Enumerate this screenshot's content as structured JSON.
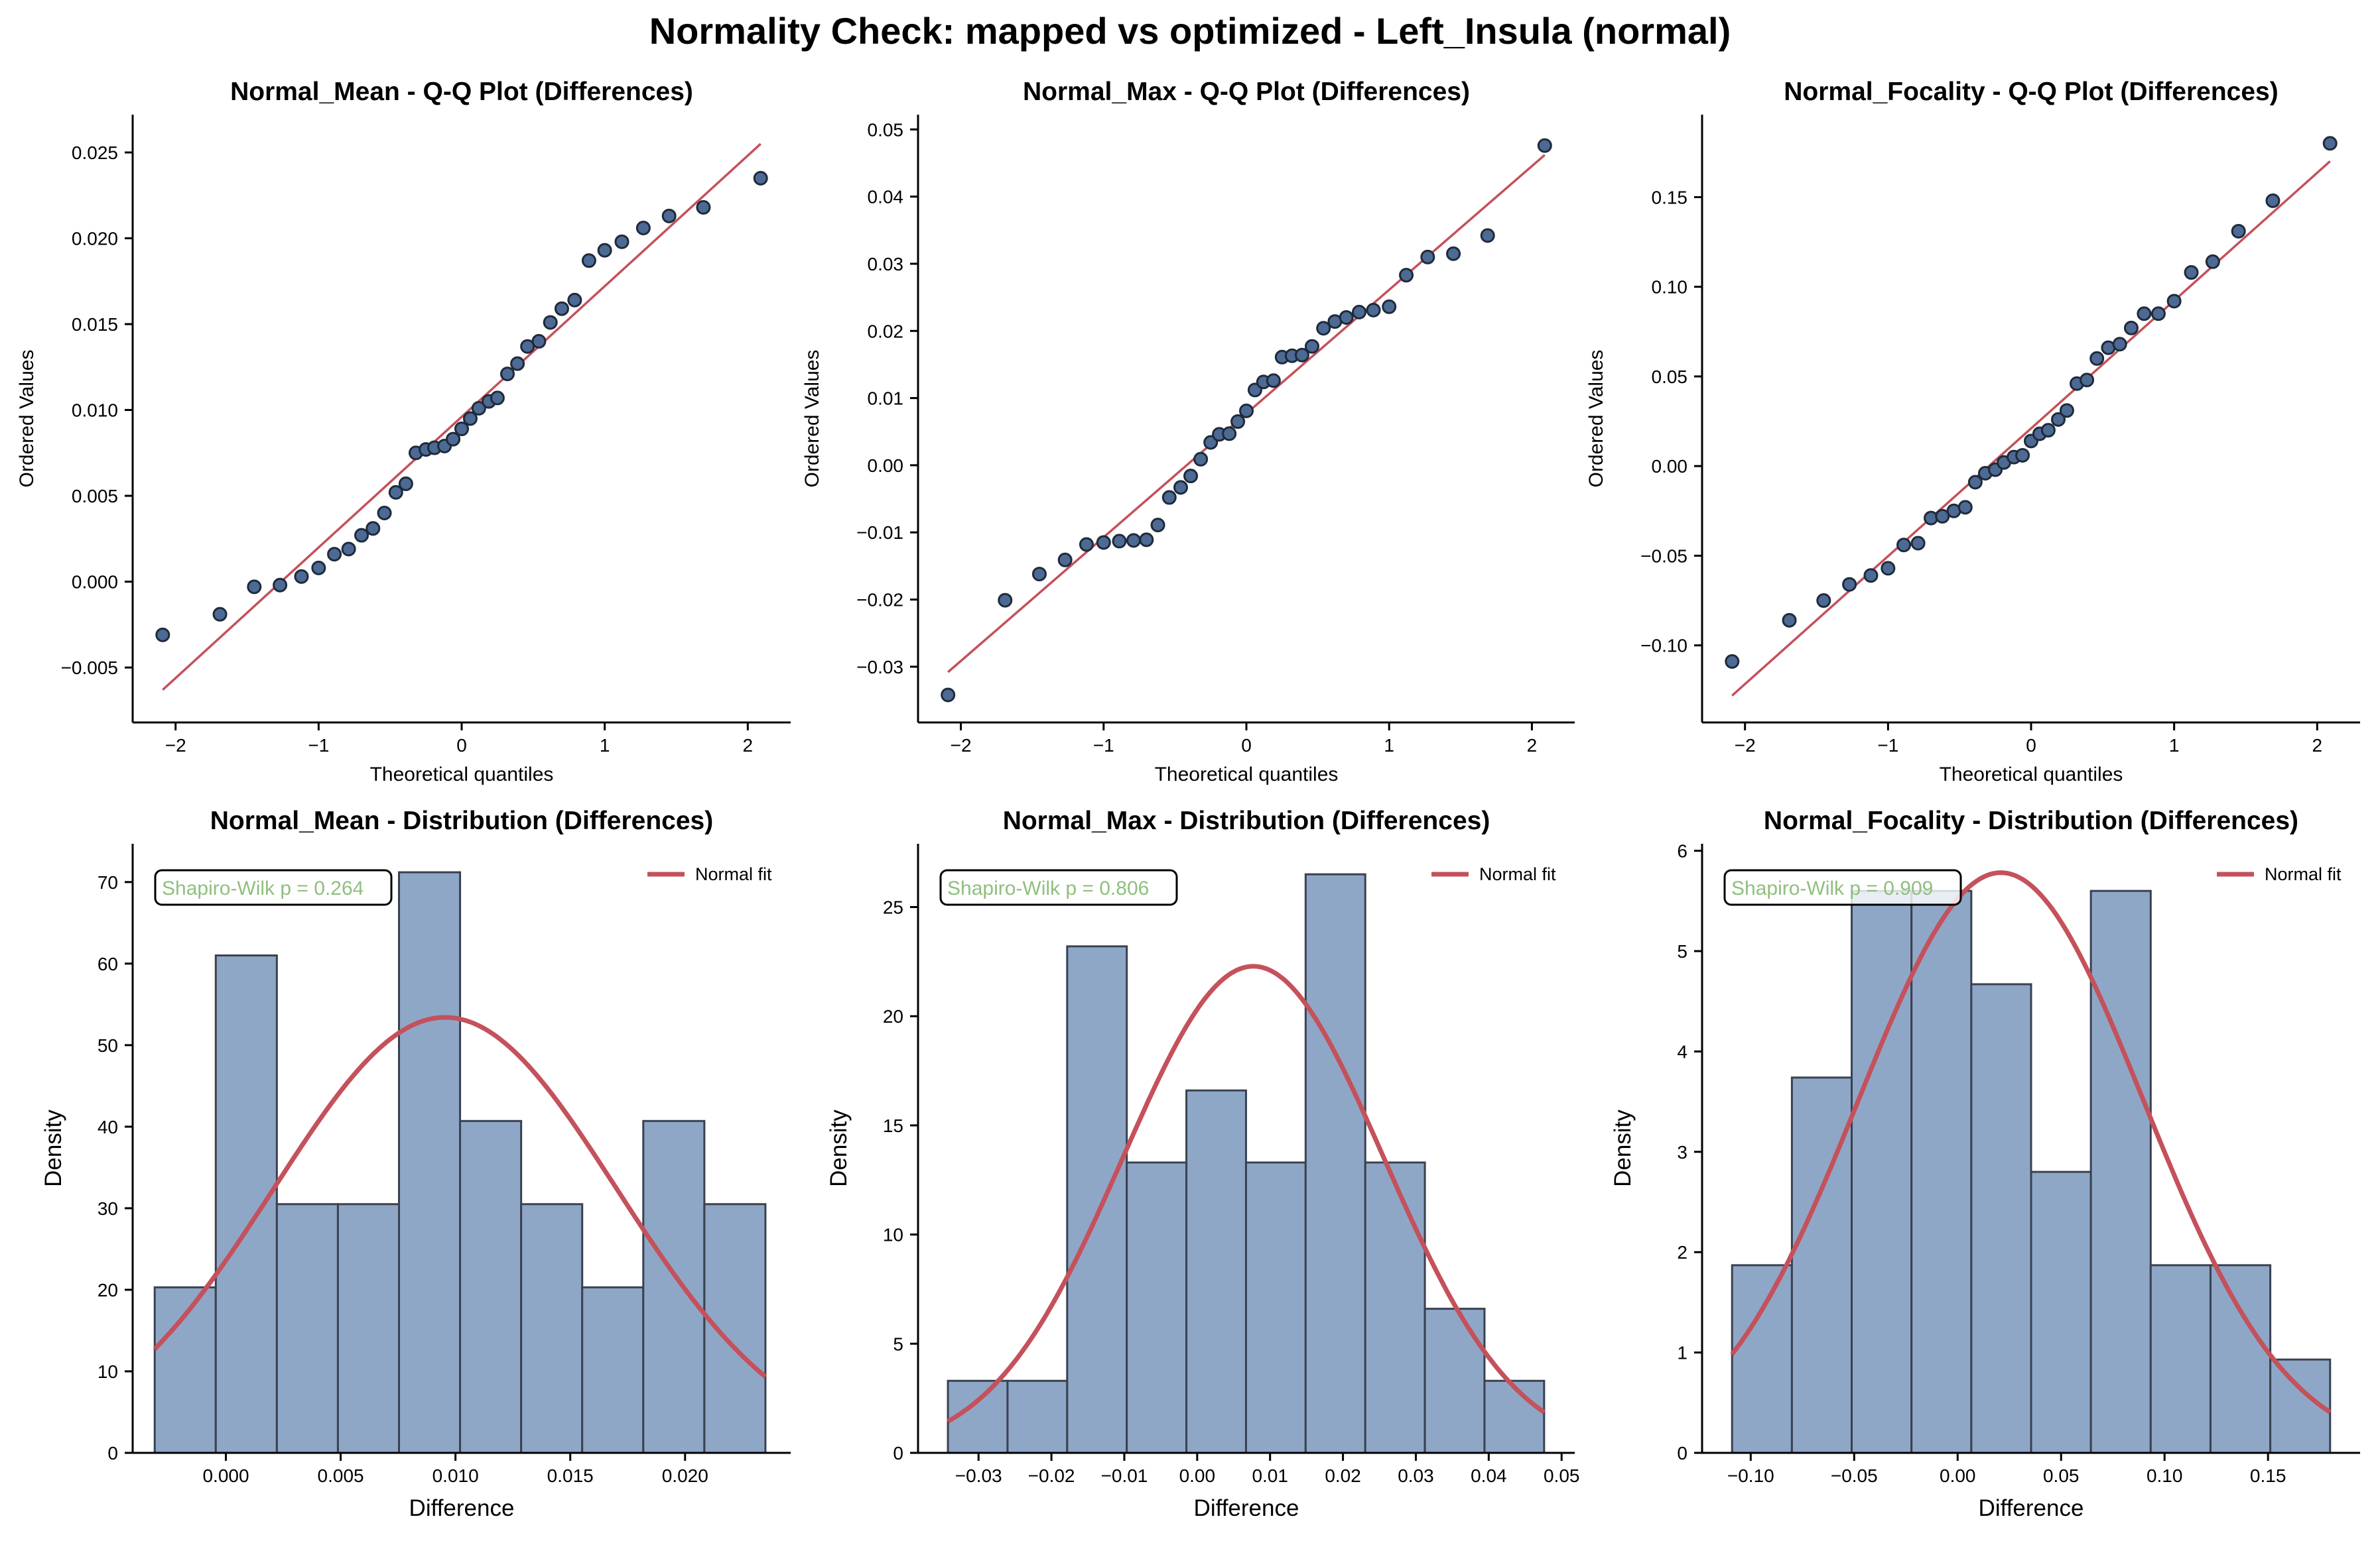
{
  "figure": {
    "title": "Normality Check: mapped vs optimized - Left_Insula (normal)"
  },
  "colors": {
    "point_fill": "#4c6a94",
    "point_edge": "#1f2a3a",
    "fit_line": "#c4515b",
    "hist_fill": "#8fa7c7",
    "hist_edge": "#3a4150",
    "annotation_text": "#8fbf7f"
  },
  "chart_data": [
    {
      "type": "scatter",
      "title": "Normal_Mean - Q-Q Plot (Differences)",
      "xlabel": "Theoretical quantiles",
      "ylabel": "Ordered Values",
      "xlim": [
        -2.3,
        2.3
      ],
      "ylim": [
        -0.0082,
        0.0272
      ],
      "xticks": [
        -2,
        -1,
        0,
        1,
        2
      ],
      "xtick_labels": [
        "−2",
        "−1",
        "0",
        "1",
        "2"
      ],
      "yticks": [
        -0.005,
        0.0,
        0.005,
        0.01,
        0.015,
        0.02,
        0.025
      ],
      "ytick_labels": [
        "−0.005",
        "0.000",
        "0.005",
        "0.010",
        "0.015",
        "0.020",
        "0.025"
      ],
      "x": [
        -2.09,
        -1.69,
        -1.45,
        -1.27,
        -1.12,
        -1.0,
        -0.89,
        -0.79,
        -0.7,
        -0.62,
        -0.54,
        -0.46,
        -0.39,
        -0.32,
        -0.25,
        -0.19,
        -0.12,
        -0.06,
        0.0,
        0.06,
        0.12,
        0.19,
        0.25,
        0.32,
        0.39,
        0.46,
        0.54,
        0.62,
        0.7,
        0.79,
        0.89,
        1.0,
        1.12,
        1.27,
        1.45,
        1.69,
        2.09
      ],
      "y": [
        -0.0031,
        -0.0019,
        -0.0003,
        -0.0002,
        0.0003,
        0.0008,
        0.0016,
        0.0019,
        0.0027,
        0.0031,
        0.004,
        0.0052,
        0.0057,
        0.0075,
        0.0077,
        0.0078,
        0.0079,
        0.0083,
        0.0089,
        0.0095,
        0.0101,
        0.0105,
        0.0107,
        0.0121,
        0.0127,
        0.0137,
        0.014,
        0.0151,
        0.0159,
        0.0164,
        0.0187,
        0.0193,
        0.0198,
        0.0206,
        0.0213,
        0.0218,
        0.0235
      ],
      "fit_line": {
        "x": [
          -2.09,
          2.09
        ],
        "y": [
          -0.0063,
          0.0255
        ]
      }
    },
    {
      "type": "scatter",
      "title": "Normal_Max - Q-Q Plot (Differences)",
      "xlabel": "Theoretical quantiles",
      "ylabel": "Ordered Values",
      "xlim": [
        -2.3,
        2.3
      ],
      "ylim": [
        -0.0383,
        0.0522
      ],
      "xticks": [
        -2,
        -1,
        0,
        1,
        2
      ],
      "xtick_labels": [
        "−2",
        "−1",
        "0",
        "1",
        "2"
      ],
      "yticks": [
        -0.03,
        -0.02,
        -0.01,
        0.0,
        0.01,
        0.02,
        0.03,
        0.04,
        0.05
      ],
      "ytick_labels": [
        "−0.03",
        "−0.02",
        "−0.01",
        "0.00",
        "0.01",
        "0.02",
        "0.03",
        "0.04",
        "0.05"
      ],
      "x": [
        -2.09,
        -1.69,
        -1.45,
        -1.27,
        -1.12,
        -1.0,
        -0.89,
        -0.79,
        -0.7,
        -0.62,
        -0.54,
        -0.46,
        -0.39,
        -0.32,
        -0.25,
        -0.19,
        -0.12,
        -0.06,
        0.0,
        0.06,
        0.12,
        0.19,
        0.25,
        0.32,
        0.39,
        0.46,
        0.54,
        0.62,
        0.7,
        0.79,
        0.89,
        1.0,
        1.12,
        1.27,
        1.45,
        1.69,
        2.09
      ],
      "y": [
        -0.0342,
        -0.0201,
        -0.0162,
        -0.0141,
        -0.0118,
        -0.0115,
        -0.0113,
        -0.0112,
        -0.0111,
        -0.0089,
        -0.0048,
        -0.0033,
        -0.0016,
        0.0009,
        0.0034,
        0.0046,
        0.0047,
        0.0065,
        0.0081,
        0.0112,
        0.0124,
        0.0126,
        0.0161,
        0.0163,
        0.0164,
        0.0177,
        0.0204,
        0.0214,
        0.022,
        0.0228,
        0.0231,
        0.0236,
        0.0283,
        0.031,
        0.0315,
        0.0342,
        0.0476
      ],
      "fit_line": {
        "x": [
          -2.09,
          2.09
        ],
        "y": [
          -0.0308,
          0.0462
        ]
      }
    },
    {
      "type": "scatter",
      "title": "Normal_Focality - Q-Q Plot (Differences)",
      "xlabel": "Theoretical quantiles",
      "ylabel": "Ordered Values",
      "xlim": [
        -2.3,
        2.3
      ],
      "ylim": [
        -0.143,
        0.196
      ],
      "xticks": [
        -2,
        -1,
        0,
        1,
        2
      ],
      "xtick_labels": [
        "−2",
        "−1",
        "0",
        "1",
        "2"
      ],
      "yticks": [
        -0.1,
        -0.05,
        0.0,
        0.05,
        0.1,
        0.15
      ],
      "ytick_labels": [
        "−0.10",
        "−0.05",
        "0.00",
        "0.05",
        "0.10",
        "0.15"
      ],
      "x": [
        -2.09,
        -1.69,
        -1.45,
        -1.27,
        -1.12,
        -1.0,
        -0.89,
        -0.79,
        -0.7,
        -0.62,
        -0.54,
        -0.46,
        -0.39,
        -0.32,
        -0.25,
        -0.19,
        -0.12,
        -0.06,
        0.0,
        0.06,
        0.12,
        0.19,
        0.25,
        0.32,
        0.39,
        0.46,
        0.54,
        0.62,
        0.7,
        0.79,
        0.89,
        1.0,
        1.12,
        1.27,
        1.45,
        1.69,
        2.09
      ],
      "y": [
        -0.109,
        -0.086,
        -0.075,
        -0.066,
        -0.061,
        -0.057,
        -0.044,
        -0.043,
        -0.029,
        -0.028,
        -0.025,
        -0.023,
        -0.009,
        -0.004,
        -0.002,
        0.002,
        0.005,
        0.006,
        0.014,
        0.018,
        0.02,
        0.026,
        0.031,
        0.046,
        0.048,
        0.06,
        0.066,
        0.068,
        0.077,
        0.085,
        0.085,
        0.092,
        0.108,
        0.114,
        0.131,
        0.148,
        0.18
      ],
      "fit_line": {
        "x": [
          -2.09,
          2.09
        ],
        "y": [
          -0.128,
          0.17
        ]
      }
    },
    {
      "type": "bar",
      "title": "Normal_Mean - Distribution (Differences)",
      "xlabel": "Difference",
      "ylabel": "Density",
      "xlim": [
        -0.00406,
        0.0246
      ],
      "ylim": [
        0,
        74.7
      ],
      "xticks": [
        0.0,
        0.005,
        0.01,
        0.015,
        0.02
      ],
      "xtick_labels": [
        "0.000",
        "0.005",
        "0.010",
        "0.015",
        "0.020"
      ],
      "yticks": [
        0,
        10,
        20,
        30,
        40,
        50,
        60,
        70
      ],
      "ytick_labels": [
        "0",
        "10",
        "20",
        "30",
        "40",
        "50",
        "60",
        "70"
      ],
      "bin_edges": [
        -0.0031,
        -0.00044,
        0.00222,
        0.00488,
        0.00754,
        0.0102,
        0.01286,
        0.01552,
        0.01818,
        0.02084,
        0.0235
      ],
      "values": [
        20.3,
        61.0,
        30.5,
        30.5,
        71.2,
        40.7,
        30.5,
        20.3,
        40.7,
        30.5
      ],
      "fit": {
        "label": "Normal fit",
        "mean": 0.00955,
        "std": 0.00747
      },
      "annotation": "Shapiro-Wilk p = 0.264",
      "legend": "upper right"
    },
    {
      "type": "bar",
      "title": "Normal_Max - Distribution (Differences)",
      "xlabel": "Difference",
      "ylabel": "Density",
      "xlim": [
        -0.0383,
        0.0518
      ],
      "ylim": [
        0,
        27.9
      ],
      "xticks": [
        -0.03,
        -0.02,
        -0.01,
        0.0,
        0.01,
        0.02,
        0.03,
        0.04,
        0.05
      ],
      "xtick_labels": [
        "−0.03",
        "−0.02",
        "−0.01",
        "0.00",
        "0.01",
        "0.02",
        "0.03",
        "0.04",
        "0.05"
      ],
      "yticks": [
        0,
        5,
        10,
        15,
        20,
        25
      ],
      "ytick_labels": [
        "0",
        "5",
        "10",
        "15",
        "20",
        "25"
      ],
      "bin_edges": [
        -0.0342,
        -0.02602,
        -0.01784,
        -0.00966,
        -0.00148,
        0.0067,
        0.01488,
        0.02306,
        0.03124,
        0.03942,
        0.0476
      ],
      "values": [
        3.3,
        3.3,
        23.2,
        13.3,
        16.6,
        13.3,
        26.5,
        13.3,
        6.6,
        3.3
      ],
      "fit": {
        "label": "Normal fit",
        "mean": 0.0077,
        "std": 0.0179
      },
      "annotation": "Shapiro-Wilk p = 0.806",
      "legend": "upper right"
    },
    {
      "type": "bar",
      "title": "Normal_Focality - Distribution (Differences)",
      "xlabel": "Difference",
      "ylabel": "Density",
      "xlim": [
        -0.1235,
        0.1945
      ],
      "ylim": [
        0,
        6.07
      ],
      "xticks": [
        -0.1,
        -0.05,
        0.0,
        0.05,
        0.1,
        0.15
      ],
      "xtick_labels": [
        "−0.10",
        "−0.05",
        "0.00",
        "0.05",
        "0.10",
        "0.15"
      ],
      "yticks": [
        0,
        1,
        2,
        3,
        4,
        5,
        6
      ],
      "ytick_labels": [
        "0",
        "1",
        "2",
        "3",
        "4",
        "5",
        "6"
      ],
      "bin_edges": [
        -0.109,
        -0.0801,
        -0.0512,
        -0.0223,
        0.0066,
        0.0355,
        0.0644,
        0.0933,
        0.1222,
        0.1511,
        0.18
      ],
      "values": [
        1.87,
        3.74,
        5.6,
        5.6,
        4.67,
        2.8,
        5.6,
        1.87,
        1.87,
        0.93
      ],
      "fit": {
        "label": "Normal fit",
        "mean": 0.0209,
        "std": 0.069
      },
      "annotation": "Shapiro-Wilk p = 0.909",
      "legend": "upper right"
    }
  ]
}
